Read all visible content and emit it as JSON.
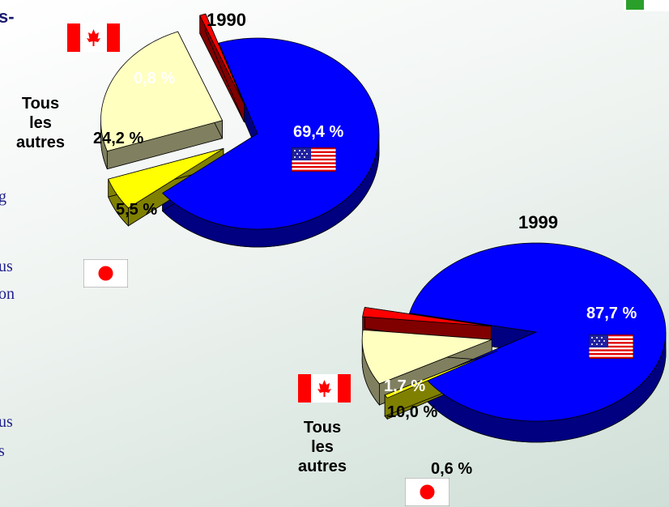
{
  "chart_data": [
    {
      "type": "pie",
      "title": "1990",
      "categories": [
        null,
        null,
        "Tous les autres",
        null
      ],
      "values": [
        69.4,
        0.8,
        24.2,
        5.5
      ],
      "value_labels": [
        "69,4 %",
        "0,8 %",
        "24,2 %",
        "5,5 %"
      ],
      "colors": [
        "#0000ff",
        "#ff0000",
        "#ffffc0",
        "#ffff00"
      ]
    },
    {
      "type": "pie",
      "title": "1999",
      "categories": [
        null,
        null,
        "Tous les autres",
        null
      ],
      "values": [
        87.7,
        1.7,
        10.0,
        0.6
      ],
      "value_labels": [
        "87,7 %",
        "1,7 %",
        "10,0 %",
        "0,6 %"
      ],
      "colors": [
        "#0000ff",
        "#ff0000",
        "#ffffc0",
        "#ffff00"
      ]
    }
  ],
  "left_text_fragments": [
    "s-",
    "g",
    "us",
    "on",
    "us",
    "s"
  ]
}
